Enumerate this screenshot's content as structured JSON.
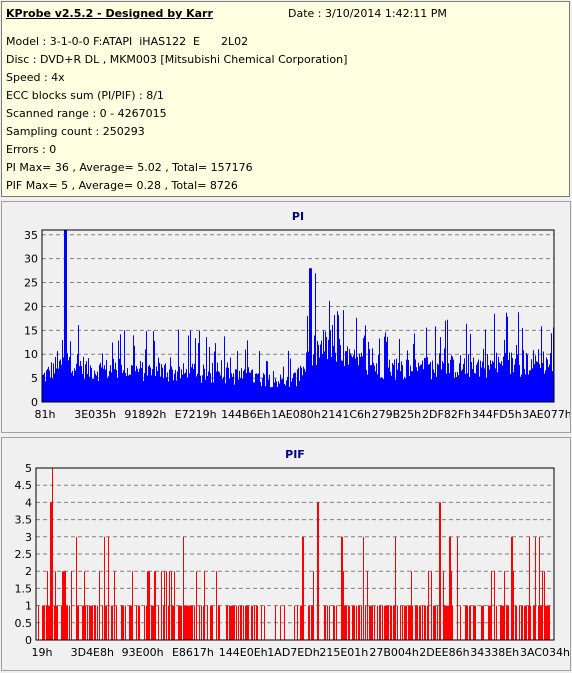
{
  "header": {
    "title": "KProbe v2.5.2 - Designed by Karr",
    "date": "Date : 3/10/2014 1:42:11 PM",
    "lines": [
      "Model : 3-1-0-0 F:ATAPI  iHAS122  E      2L02",
      "Disc : DVD+R DL , MKM003 [Mitsubishi Chemical Corporation]",
      "Speed : 4x",
      "ECC blocks sum (PI/PIF) : 8/1",
      "Scanned range : 0 - 4267015",
      "Sampling count : 250293",
      "Errors : 0",
      "PI Max= 36 , Average= 5.02 , Total= 157176",
      "PIF Max= 5 , Average= 0.28 , Total= 8726"
    ]
  },
  "colors": {
    "pi": "#0000ff",
    "pif": "#ff0000",
    "grid": "#808080",
    "title": "#000080"
  },
  "chart_data": [
    {
      "type": "bar",
      "title": "PI",
      "ylim": [
        0,
        36
      ],
      "yticks": [
        0,
        5,
        10,
        15,
        20,
        25,
        30,
        35
      ],
      "xticks": [
        "81h",
        "3E035h",
        "91892h",
        "E7219h",
        "144B6Eh",
        "1AE080h",
        "2141C6h",
        "279B25h",
        "2DF82Fh",
        "344FD5h",
        "3AE077h"
      ],
      "grid": "dashed",
      "profile": [
        {
          "p": 0.0,
          "base": 6,
          "peak": 14
        },
        {
          "p": 0.03,
          "base": 9,
          "peak": 20
        },
        {
          "p": 0.045,
          "base": 14,
          "peak": 36
        },
        {
          "p": 0.06,
          "base": 10,
          "peak": 24
        },
        {
          "p": 0.09,
          "base": 8,
          "peak": 17
        },
        {
          "p": 0.15,
          "base": 8,
          "peak": 16
        },
        {
          "p": 0.3,
          "base": 7,
          "peak": 15
        },
        {
          "p": 0.42,
          "base": 6,
          "peak": 14
        },
        {
          "p": 0.48,
          "base": 5,
          "peak": 12
        },
        {
          "p": 0.5,
          "base": 6,
          "peak": 12
        },
        {
          "p": 0.53,
          "base": 12,
          "peak": 28
        },
        {
          "p": 0.56,
          "base": 14,
          "peak": 25
        },
        {
          "p": 0.6,
          "base": 10,
          "peak": 18
        },
        {
          "p": 0.7,
          "base": 8,
          "peak": 17
        },
        {
          "p": 0.85,
          "base": 9,
          "peak": 19
        },
        {
          "p": 1.0,
          "base": 10,
          "peak": 20
        }
      ]
    },
    {
      "type": "bar",
      "title": "PIF",
      "ylim": [
        0,
        5
      ],
      "yticks": [
        0,
        0.5,
        1,
        1.5,
        2,
        2.5,
        3,
        3.5,
        4,
        4.5,
        5
      ],
      "xticks": [
        "19h",
        "3D4E8h",
        "93E00h",
        "E8617h",
        "144E0Eh",
        "1AD7EDh",
        "215E01h",
        "27B004h",
        "2DEE86h",
        "34338Eh",
        "3AC034h"
      ],
      "grid": "dashed",
      "spikes": [
        {
          "p": 0.03,
          "v": 5
        },
        {
          "p": 0.028,
          "v": 4
        },
        {
          "p": 0.515,
          "v": 3
        },
        {
          "p": 0.545,
          "v": 4
        },
        {
          "p": 0.59,
          "v": 3
        },
        {
          "p": 0.78,
          "v": 4
        },
        {
          "p": 0.8,
          "v": 3
        },
        {
          "p": 0.92,
          "v": 3
        }
      ]
    }
  ]
}
